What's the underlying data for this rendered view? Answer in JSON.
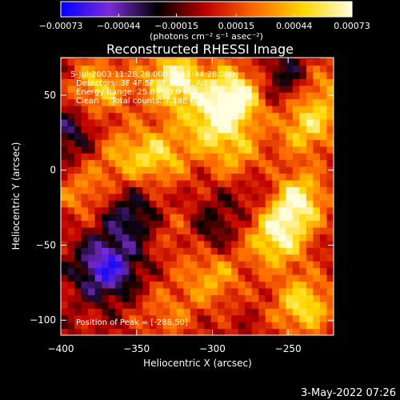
{
  "chart_data": {
    "type": "heatmap",
    "title": "Reconstructed RHESSI Image",
    "xlabel": "Heliocentric X (arcsec)",
    "ylabel": "Heliocentric Y (arcsec)",
    "xlim": [
      -400,
      -220
    ],
    "ylim": [
      -110,
      75
    ],
    "x_ticks": [
      -400,
      -350,
      -300,
      -250
    ],
    "x_tick_labels": [
      "−400",
      "−350",
      "−300",
      "−250"
    ],
    "y_ticks": [
      -100,
      -50,
      0,
      50
    ],
    "y_tick_labels": [
      "−100",
      "−50",
      "0",
      "50"
    ],
    "colorbar": {
      "range": [
        -0.00073,
        0.00073
      ],
      "ticks": [
        -0.00073,
        -0.00044,
        -0.00015,
        0.00015,
        0.00044,
        0.00073
      ],
      "tick_labels": [
        "−0.00073",
        "−0.00044",
        "−0.00015",
        "0.00015",
        "0.00044",
        "0.00073"
      ],
      "units": "(photons cm⁻² s⁻¹ asec⁻²)",
      "colors": [
        "#0000ff",
        "#7b2cd8",
        "#000000",
        "#c00000",
        "#ff6a00",
        "#ffd700",
        "#ffffe0"
      ]
    },
    "annotations": [
      "5-Jul-2003 11:28:28.000 to 11:44:28.000",
      "Detectors: 3F 4F 5F 6F 7F 8F, Att 0",
      "Energy Range: 25.0 - 50.0 keV",
      "Clean     Total counts: 7.18E+04"
    ],
    "peak_label": "Position of Peak = [-288,50]",
    "hotspots": [
      {
        "x": -325,
        "y": 60,
        "value": 0.0007
      },
      {
        "x": -285,
        "y": 50,
        "value": 0.00073
      },
      {
        "x": -300,
        "y": 30,
        "value": 0.0005
      },
      {
        "x": -335,
        "y": 10,
        "value": 0.00045
      },
      {
        "x": -280,
        "y": 5,
        "value": 0.0004
      },
      {
        "x": -245,
        "y": -20,
        "value": 0.00068
      },
      {
        "x": -258,
        "y": -45,
        "value": 0.0006
      },
      {
        "x": -238,
        "y": 30,
        "value": 0.0005
      },
      {
        "x": -240,
        "y": -90,
        "value": 0.00055
      },
      {
        "x": -300,
        "y": -70,
        "value": 0.0004
      },
      {
        "x": -318,
        "y": -40,
        "value": 0.00035
      },
      {
        "x": -375,
        "y": 55,
        "value": 0.00045
      },
      {
        "x": -360,
        "y": 10,
        "value": 0.0003
      },
      {
        "x": -385,
        "y": -15,
        "value": 0.0003
      },
      {
        "x": -228,
        "y": 55,
        "value": 0.00035
      },
      {
        "x": -330,
        "y": -95,
        "value": 0.00025
      }
    ],
    "coldspots": [
      {
        "x": -370,
        "y": -65,
        "value": -0.0006
      },
      {
        "x": -250,
        "y": 60,
        "value": -0.00035
      },
      {
        "x": -305,
        "y": -40,
        "value": -0.0004
      },
      {
        "x": -395,
        "y": 25,
        "value": -0.0003
      },
      {
        "x": -355,
        "y": -30,
        "value": -0.00035
      },
      {
        "x": -270,
        "y": -10,
        "value": -0.0003
      }
    ]
  },
  "footer": {
    "timestamp": "3-May-2022 07:26"
  }
}
